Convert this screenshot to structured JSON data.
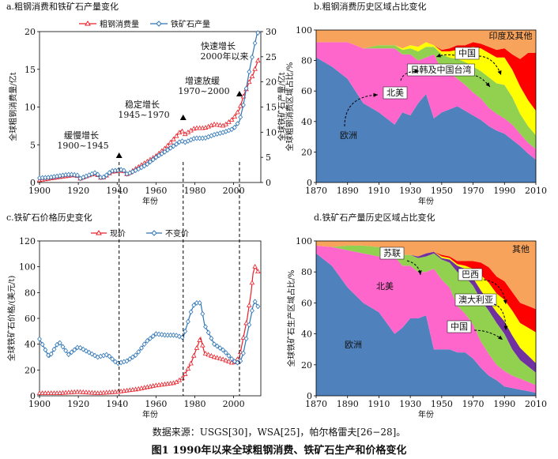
{
  "figure_caption": "图1 1990年以来全球粗钢消费、铁矿石生产和价格变化",
  "source_note": "数据来源：USGS[30]，WSA[25]，帕尔格雷夫[26−28]。",
  "colors": {
    "steel": "#e8202a",
    "ore": "#2e75b6",
    "asia_other": "#f7a35c",
    "china": "#ff0000",
    "jp_kr_tw": "#ffff00",
    "north_america": "#ff66cc",
    "europe": "#4f81bd",
    "green": "#92d050",
    "ussr": "#92d050",
    "brazil": "#ff0000",
    "australia": "#ffff00",
    "china_ore": "#7030a0",
    "other_ore": "#00b050"
  },
  "chart_data": [
    {
      "id": "a",
      "type": "line",
      "title": "a.粗钢消费和铁矿石产量变化",
      "xlabel": "年份",
      "ylabel": "全球粗钢消费量/亿t",
      "y2label": "全球铁矿石产量/亿t",
      "xlim": [
        1900,
        2014
      ],
      "ylim": [
        0,
        20
      ],
      "y2lim": [
        0,
        30
      ],
      "xticks": [
        "1900",
        "1920",
        "1940",
        "1960",
        "1980",
        "2000"
      ],
      "yticks": [
        "0",
        "5",
        "10",
        "15",
        "20"
      ],
      "y2ticks": [
        "0",
        "5",
        "10",
        "15",
        "20",
        "25",
        "30"
      ],
      "series": [
        {
          "name": "粗钢消费量",
          "axis": "left",
          "marker": "triangle",
          "x": [
            1900,
            1905,
            1910,
            1913,
            1916,
            1918,
            1920,
            1921,
            1925,
            1929,
            1932,
            1935,
            1937,
            1940,
            1943,
            1945,
            1946,
            1950,
            1955,
            1960,
            1965,
            1970,
            1973,
            1975,
            1980,
            1985,
            1990,
            1995,
            2000,
            2003,
            2005,
            2008,
            2010,
            2013
          ],
          "values": [
            0.3,
            0.5,
            0.7,
            0.8,
            0.9,
            1.0,
            0.8,
            0.5,
            0.9,
            1.2,
            0.5,
            1.0,
            1.4,
            1.5,
            1.6,
            1.1,
            1.2,
            1.9,
            2.7,
            3.5,
            4.6,
            6.0,
            6.9,
            6.4,
            7.2,
            7.2,
            7.7,
            7.5,
            8.5,
            9.7,
            11.4,
            13.3,
            14.3,
            16.5
          ]
        },
        {
          "name": "铁矿石产量",
          "axis": "right",
          "marker": "diamond",
          "x": [
            1900,
            1905,
            1910,
            1913,
            1916,
            1918,
            1920,
            1921,
            1925,
            1929,
            1932,
            1935,
            1937,
            1940,
            1943,
            1945,
            1946,
            1950,
            1955,
            1960,
            1965,
            1970,
            1973,
            1975,
            1980,
            1985,
            1990,
            1995,
            2000,
            2003,
            2005,
            2008,
            2010,
            2012,
            2013
          ],
          "values": [
            0.9,
            1.0,
            1.3,
            1.5,
            1.6,
            1.5,
            1.4,
            0.8,
            1.4,
            2.0,
            0.8,
            1.6,
            2.3,
            2.4,
            2.6,
            1.7,
            1.8,
            2.5,
            3.5,
            5.0,
            6.2,
            7.5,
            8.3,
            8.0,
            8.8,
            8.8,
            9.5,
            10.0,
            10.7,
            12.2,
            15.4,
            22.0,
            25.9,
            29.5,
            30.0
          ]
        }
      ],
      "annotations": [
        {
          "text": "缓慢增长",
          "text2": "1900~1945"
        },
        {
          "text": "稳定增长",
          "text2": "1945~1970"
        },
        {
          "text": "增速放缓",
          "text2": "1970~2000"
        },
        {
          "text": "快速增长",
          "text2": "2000年以来"
        }
      ]
    },
    {
      "id": "b",
      "type": "area",
      "title": "b.粗钢消费历史区域占比变化",
      "xlabel": "年份",
      "ylabel": "全球粗钢消费区域占比/%",
      "xlim": [
        1870,
        2010
      ],
      "ylim": [
        0,
        100
      ],
      "xticks": [
        "1870",
        "1890",
        "1910",
        "1930",
        "1950",
        "1970",
        "1990",
        "2010"
      ],
      "yticks": [
        "0",
        "20",
        "40",
        "60",
        "80",
        "100"
      ],
      "x": [
        1870,
        1880,
        1890,
        1900,
        1910,
        1920,
        1925,
        1930,
        1935,
        1940,
        1945,
        1950,
        1955,
        1960,
        1965,
        1970,
        1975,
        1980,
        1985,
        1990,
        1995,
        2000,
        2005,
        2010
      ],
      "series": [
        {
          "name": "欧洲",
          "values": [
            82,
            76,
            68,
            52,
            46,
            38,
            46,
            44,
            52,
            58,
            42,
            46,
            48,
            50,
            47,
            44,
            41,
            37,
            34,
            32,
            28,
            24,
            19,
            15
          ]
        },
        {
          "name": "北美",
          "values": [
            10,
            16,
            24,
            36,
            42,
            50,
            38,
            40,
            28,
            24,
            42,
            28,
            24,
            18,
            17,
            15,
            14,
            12,
            11,
            10,
            10,
            8,
            7,
            7
          ]
        },
        {
          "name": "绿色区域",
          "values": [
            0,
            0,
            0,
            0,
            2,
            2,
            3,
            4,
            6,
            7,
            5,
            10,
            10,
            13,
            15,
            17,
            18,
            20,
            20,
            22,
            18,
            13,
            11,
            9
          ]
        },
        {
          "name": "日韩及中国台湾",
          "values": [
            0,
            0,
            0,
            0,
            0,
            0,
            1,
            2,
            3,
            3,
            1,
            2,
            4,
            6,
            9,
            13,
            15,
            16,
            17,
            18,
            18,
            18,
            17,
            16
          ]
        },
        {
          "name": "中国",
          "values": [
            0,
            0,
            0,
            0,
            0,
            0,
            0,
            0,
            0,
            0,
            0,
            1,
            2,
            3,
            2,
            3,
            3,
            4,
            5,
            6,
            10,
            18,
            31,
            38
          ]
        },
        {
          "name": "印度及其他",
          "values": [
            8,
            8,
            8,
            12,
            10,
            10,
            12,
            10,
            11,
            8,
            10,
            13,
            12,
            10,
            10,
            8,
            9,
            11,
            13,
            12,
            16,
            19,
            15,
            15
          ]
        }
      ],
      "labels": [
        "欧洲",
        "北美",
        "日韩及中国台湾",
        "中国",
        "印度及其他"
      ]
    },
    {
      "id": "c",
      "type": "line",
      "title": "c.铁矿石价格历史变化",
      "xlabel": "年份",
      "ylabel": "全球铁矿石价格/(美元/t)",
      "xlim": [
        1900,
        2014
      ],
      "ylim": [
        0,
        120
      ],
      "xticks": [
        "1900",
        "1920",
        "1940",
        "1960",
        "1980",
        "2000"
      ],
      "yticks": [
        "0",
        "20",
        "40",
        "60",
        "80",
        "100",
        "120"
      ],
      "series": [
        {
          "name": "现价",
          "marker": "triangle",
          "x": [
            1900,
            1910,
            1920,
            1930,
            1940,
            1950,
            1960,
            1970,
            1974,
            1978,
            1980,
            1983,
            1985,
            1990,
            1995,
            2000,
            2003,
            2005,
            2007,
            2009,
            2010,
            2011,
            2013
          ],
          "values": [
            2,
            2,
            3,
            2,
            3,
            5,
            8,
            10,
            14,
            25,
            33,
            45,
            33,
            30,
            28,
            25,
            30,
            45,
            60,
            80,
            95,
            100,
            95
          ]
        },
        {
          "name": "不变价",
          "marker": "diamond",
          "x": [
            1900,
            1905,
            1910,
            1915,
            1920,
            1925,
            1930,
            1935,
            1940,
            1945,
            1950,
            1955,
            1960,
            1965,
            1970,
            1974,
            1978,
            1980,
            1983,
            1985,
            1990,
            1995,
            2000,
            2003,
            2005,
            2007,
            2009,
            2010,
            2011,
            2013
          ],
          "values": [
            44,
            30,
            42,
            32,
            38,
            34,
            30,
            32,
            25,
            27,
            32,
            42,
            48,
            47,
            47,
            45,
            65,
            72,
            72,
            55,
            40,
            35,
            27,
            25,
            33,
            48,
            62,
            70,
            73,
            68
          ]
        }
      ]
    },
    {
      "id": "d",
      "type": "area",
      "title": "d.铁矿石产量历史区域占比变化",
      "xlabel": "年份",
      "ylabel": "全球铁矿石生产区域占比/%",
      "xlim": [
        1870,
        2010
      ],
      "ylim": [
        0,
        100
      ],
      "xticks": [
        "1870",
        "1890",
        "1910",
        "1930",
        "1950",
        "1970",
        "1990",
        "2010"
      ],
      "yticks": [
        "0",
        "20",
        "40",
        "60",
        "80",
        "100"
      ],
      "x": [
        1870,
        1880,
        1890,
        1900,
        1910,
        1920,
        1925,
        1930,
        1935,
        1940,
        1945,
        1950,
        1955,
        1960,
        1965,
        1970,
        1975,
        1980,
        1985,
        1990,
        1995,
        2000,
        2005,
        2010
      ],
      "series": [
        {
          "name": "欧洲",
          "values": [
            92,
            84,
            70,
            60,
            54,
            40,
            44,
            50,
            50,
            52,
            30,
            30,
            30,
            28,
            28,
            24,
            18,
            13,
            10,
            6,
            5,
            4,
            3,
            2
          ]
        },
        {
          "name": "北美",
          "values": [
            5,
            12,
            24,
            32,
            36,
            50,
            40,
            34,
            30,
            28,
            52,
            45,
            40,
            30,
            25,
            22,
            17,
            14,
            10,
            10,
            8,
            7,
            6,
            5
          ]
        },
        {
          "name": "苏联",
          "values": [
            0,
            0,
            3,
            5,
            6,
            5,
            7,
            7,
            9,
            10,
            10,
            13,
            16,
            22,
            24,
            25,
            27,
            28,
            27,
            24,
            17,
            12,
            10,
            8
          ]
        },
        {
          "name": "中国",
          "values": [
            0,
            0,
            0,
            0,
            0,
            0,
            0,
            0,
            1,
            2,
            1,
            1,
            2,
            4,
            5,
            5,
            6,
            6,
            7,
            8,
            9,
            8,
            7,
            6
          ]
        },
        {
          "name": "澳大利亚",
          "values": [
            0,
            0,
            0,
            0,
            0,
            0,
            0,
            0,
            0,
            0,
            0,
            1,
            1,
            1,
            2,
            6,
            10,
            12,
            12,
            14,
            16,
            16,
            18,
            20
          ]
        },
        {
          "name": "巴西",
          "values": [
            0,
            0,
            0,
            0,
            0,
            0,
            0,
            0,
            0,
            0,
            0,
            1,
            1,
            2,
            3,
            5,
            8,
            10,
            11,
            12,
            12,
            13,
            14,
            15
          ]
        },
        {
          "name": "其他",
          "values": [
            3,
            4,
            3,
            3,
            4,
            5,
            9,
            9,
            10,
            8,
            7,
            9,
            10,
            13,
            13,
            13,
            14,
            17,
            23,
            26,
            33,
            40,
            42,
            44
          ]
        }
      ],
      "labels": [
        "苏联",
        "北美",
        "欧洲",
        "巴西",
        "澳大利亚",
        "中国",
        "其他"
      ]
    }
  ]
}
